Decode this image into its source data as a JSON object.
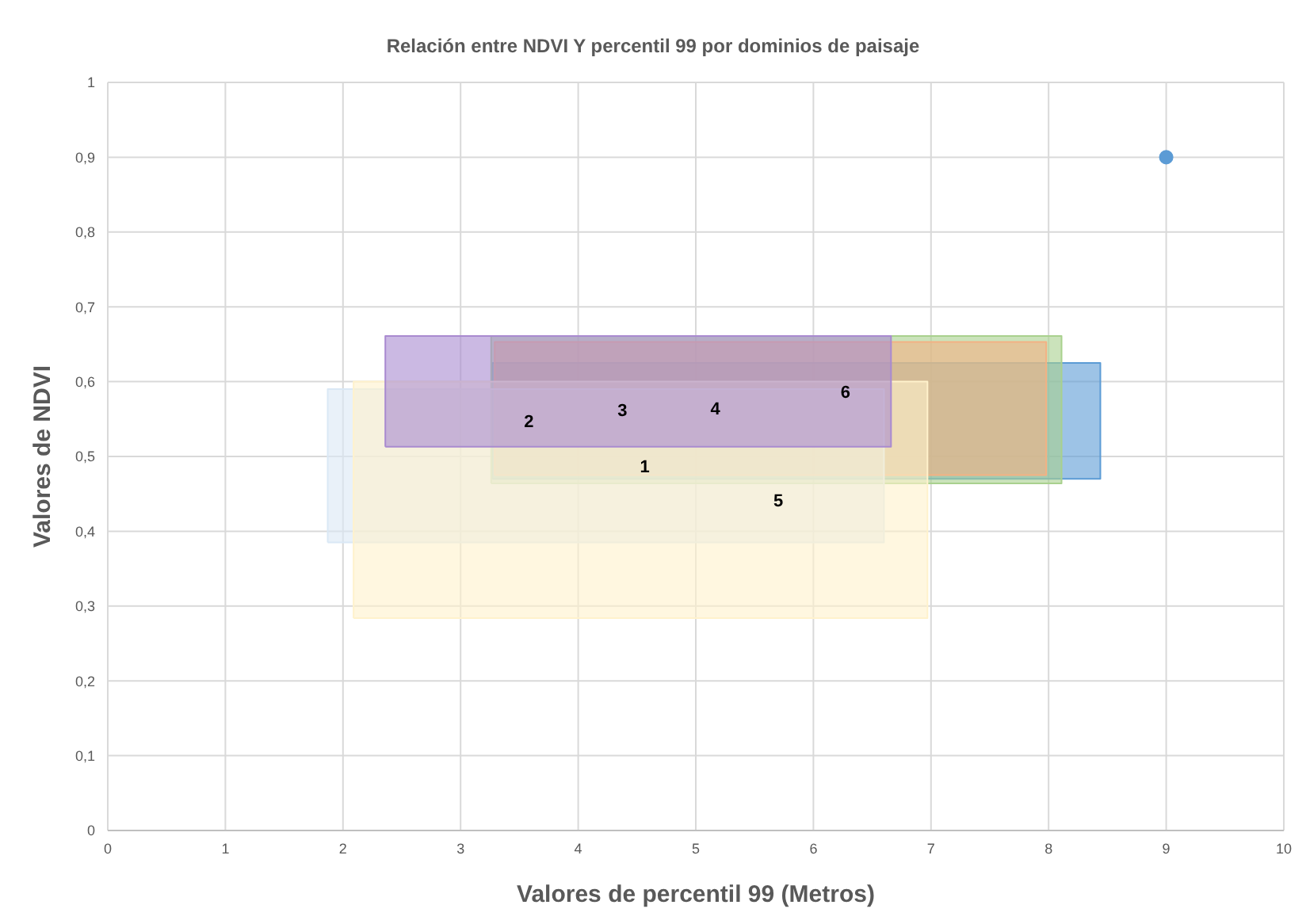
{
  "chart_data": {
    "type": "area",
    "title": "Relación entre NDVI Y percentil 99 por dominios de paisaje",
    "xlabel": "Valores de percentil 99 (Metros)",
    "ylabel": "Valores de NDVI",
    "series": [
      {
        "name": "2",
        "x": [
          3.27,
          8.44,
          8.44,
          3.27,
          3.27
        ],
        "values": [
          0.47,
          0.47,
          0.625,
          0.625,
          0.47
        ],
        "color": "#5b9bd5"
      },
      {
        "name": "3",
        "x": [
          3.26,
          8.11,
          8.11,
          3.26,
          3.26
        ],
        "values": [
          0.464,
          0.464,
          0.661,
          0.661,
          0.464
        ],
        "color": "#a9d18e"
      },
      {
        "name": "4",
        "x": [
          3.29,
          7.98,
          7.98,
          3.29,
          3.29
        ],
        "values": [
          0.475,
          0.475,
          0.653,
          0.653,
          0.475
        ],
        "color": "#f4b183"
      },
      {
        "name": "1",
        "x": [
          1.87,
          6.6,
          6.6,
          1.87,
          1.87
        ],
        "values": [
          0.385,
          0.385,
          0.59,
          0.59,
          0.385
        ],
        "color": "#dae8f5"
      },
      {
        "name": "5",
        "x": [
          2.09,
          6.97,
          6.97,
          2.09,
          2.09
        ],
        "values": [
          0.284,
          0.284,
          0.6,
          0.6,
          0.284
        ],
        "color": "#fff2cc"
      },
      {
        "name": "6",
        "x": [
          2.36,
          6.66,
          6.66,
          2.36,
          2.36
        ],
        "values": [
          0.513,
          0.513,
          0.661,
          0.661,
          0.513
        ],
        "color": "#a98ad0"
      },
      {
        "type": "scatter",
        "x": [
          9
        ],
        "values": [
          0.9
        ],
        "color": "#5b9bd5"
      }
    ],
    "xlim": [
      0,
      10
    ],
    "xticks": [
      0,
      1,
      2,
      3,
      4,
      5,
      6,
      7,
      8,
      9,
      10
    ],
    "ylim": [
      0,
      1
    ],
    "yticks": [
      0,
      {
        "value": 0.1,
        "label": "0,1"
      },
      {
        "value": 0.2,
        "label": "0,2"
      },
      {
        "value": 0.3,
        "label": "0,3"
      },
      {
        "value": 0.4,
        "label": "0,4"
      },
      {
        "value": 0.5,
        "label": "0,5"
      },
      {
        "value": 0.6,
        "label": "0,6"
      },
      {
        "value": 0.7,
        "label": "0,7"
      },
      {
        "value": 0.8,
        "label": "0,8"
      },
      {
        "value": 0.9,
        "label": "0,9"
      },
      1
    ],
    "grid": true
  }
}
